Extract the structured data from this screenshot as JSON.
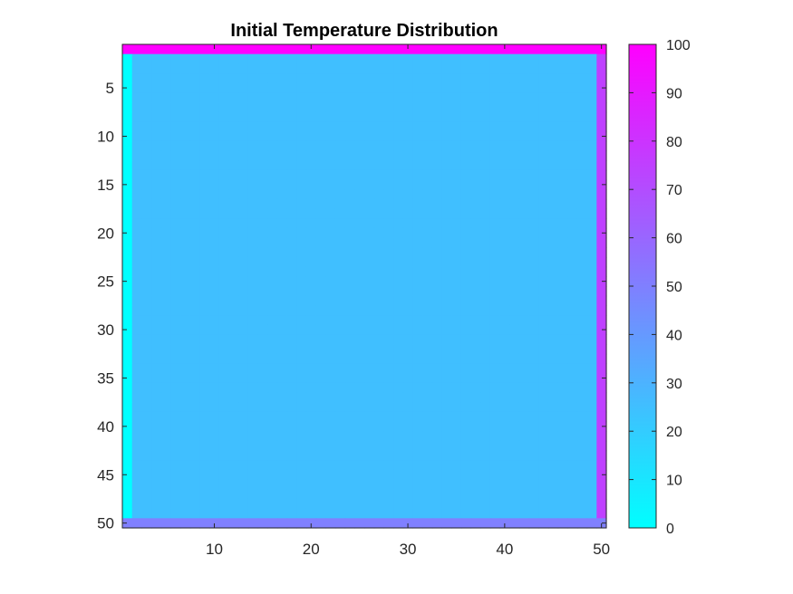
{
  "chart_data": {
    "type": "heatmap",
    "title": "Initial Temperature Distribution",
    "xlabel": "",
    "ylabel": "",
    "rows": 50,
    "cols": 50,
    "interior_value": 25,
    "boundary": {
      "top_row": 100,
      "bottom_row": 50,
      "left_col": 0,
      "right_col": 75
    },
    "x_ticks": [
      10,
      20,
      30,
      40,
      50
    ],
    "y_ticks": [
      5,
      10,
      15,
      20,
      25,
      30,
      35,
      40,
      45,
      50
    ],
    "xlim": [
      0.5,
      50.5
    ],
    "ylim": [
      0.5,
      50.5
    ],
    "y_reversed": true,
    "colormap": "cool",
    "colormap_endpoints": [
      "#00ffff",
      "#ff00ff"
    ],
    "clim": [
      0,
      100
    ],
    "colorbar_ticks": [
      0,
      10,
      20,
      30,
      40,
      50,
      60,
      70,
      80,
      90,
      100
    ],
    "colorbar_position": "right",
    "grid": false
  }
}
